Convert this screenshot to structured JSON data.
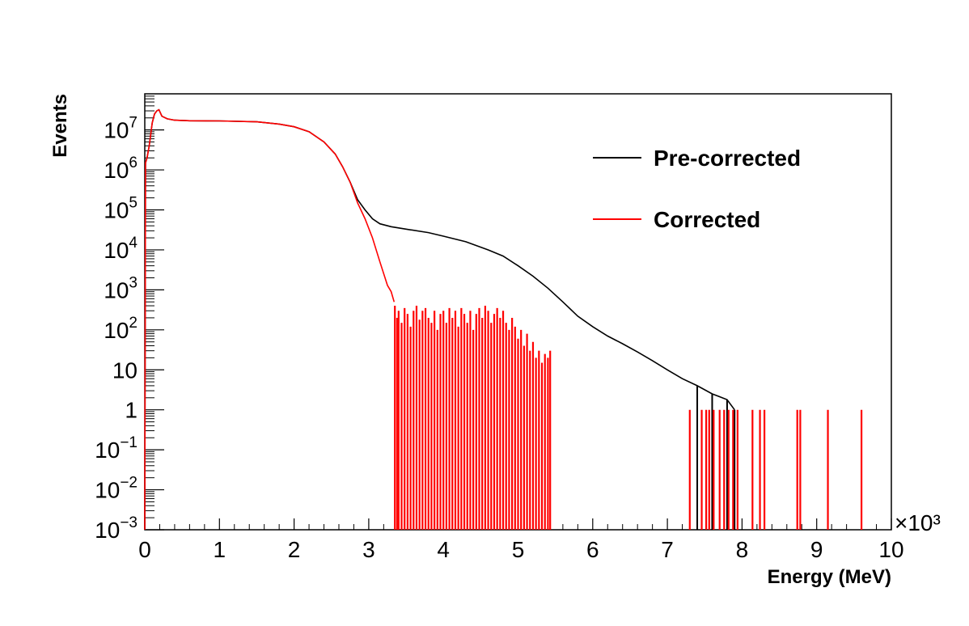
{
  "chart_data": {
    "type": "line",
    "title": "",
    "xlabel": "Energy (MeV)",
    "ylabel": "Events",
    "x_multiplier_label": "×10³",
    "x_unit_scale": 1000,
    "xlim": [
      0,
      10000
    ],
    "ylim": [
      0.001,
      80000000
    ],
    "y_scale": "log",
    "grid": false,
    "legend_position": "top-right",
    "x_ticks": [
      {
        "value": 0,
        "label": "0"
      },
      {
        "value": 1000,
        "label": "1"
      },
      {
        "value": 2000,
        "label": "2"
      },
      {
        "value": 3000,
        "label": "3"
      },
      {
        "value": 4000,
        "label": "4"
      },
      {
        "value": 5000,
        "label": "5"
      },
      {
        "value": 6000,
        "label": "6"
      },
      {
        "value": 7000,
        "label": "7"
      },
      {
        "value": 8000,
        "label": "8"
      },
      {
        "value": 9000,
        "label": "9"
      },
      {
        "value": 10000,
        "label": "10"
      }
    ],
    "y_ticks": [
      {
        "value": 0.001,
        "base": "10",
        "exp": "−3"
      },
      {
        "value": 0.01,
        "base": "10",
        "exp": "−2"
      },
      {
        "value": 0.1,
        "base": "10",
        "exp": "−1"
      },
      {
        "value": 1,
        "base": "1",
        "exp": ""
      },
      {
        "value": 10,
        "base": "10",
        "exp": ""
      },
      {
        "value": 100,
        "base": "10",
        "exp": "2"
      },
      {
        "value": 1000,
        "base": "10",
        "exp": "3"
      },
      {
        "value": 10000,
        "base": "10",
        "exp": "4"
      },
      {
        "value": 100000,
        "base": "10",
        "exp": "5"
      },
      {
        "value": 1000000,
        "base": "10",
        "exp": "6"
      },
      {
        "value": 10000000,
        "base": "10",
        "exp": "7"
      }
    ],
    "series": [
      {
        "name": "Pre-corrected",
        "color": "#000000",
        "points": [
          [
            0,
            0.001
          ],
          [
            10,
            1500000
          ],
          [
            30,
            2000000
          ],
          [
            60,
            4000000
          ],
          [
            100,
            15000000
          ],
          [
            130,
            25000000
          ],
          [
            160,
            30000000
          ],
          [
            190,
            32000000
          ],
          [
            230,
            22000000
          ],
          [
            300,
            19000000
          ],
          [
            400,
            17500000
          ],
          [
            600,
            17000000
          ],
          [
            1000,
            16800000
          ],
          [
            1500,
            16000000
          ],
          [
            1800,
            14000000
          ],
          [
            2000,
            12000000
          ],
          [
            2200,
            9000000
          ],
          [
            2400,
            5000000
          ],
          [
            2550,
            2500000
          ],
          [
            2650,
            1200000
          ],
          [
            2750,
            500000
          ],
          [
            2850,
            180000
          ],
          [
            2950,
            100000
          ],
          [
            3050,
            60000
          ],
          [
            3150,
            45000
          ],
          [
            3300,
            38000
          ],
          [
            3500,
            33000
          ],
          [
            3800,
            27000
          ],
          [
            4000,
            22000
          ],
          [
            4300,
            16000
          ],
          [
            4600,
            10000
          ],
          [
            4800,
            7000
          ],
          [
            5000,
            4000
          ],
          [
            5200,
            2200
          ],
          [
            5400,
            1100
          ],
          [
            5600,
            500
          ],
          [
            5800,
            220
          ],
          [
            6000,
            120
          ],
          [
            6200,
            70
          ],
          [
            6400,
            45
          ],
          [
            6600,
            28
          ],
          [
            6800,
            17
          ],
          [
            7000,
            10
          ],
          [
            7200,
            6
          ],
          [
            7400,
            4
          ],
          [
            7600,
            2.5
          ],
          [
            7800,
            1.8
          ],
          [
            7900,
            1
          ]
        ]
      },
      {
        "name": "Corrected",
        "color": "#ff0000",
        "points": [
          [
            0,
            0.001
          ],
          [
            10,
            1500000
          ],
          [
            30,
            2000000
          ],
          [
            60,
            4000000
          ],
          [
            100,
            15000000
          ],
          [
            130,
            25000000
          ],
          [
            160,
            30000000
          ],
          [
            190,
            32000000
          ],
          [
            230,
            22000000
          ],
          [
            300,
            19000000
          ],
          [
            400,
            17500000
          ],
          [
            600,
            17000000
          ],
          [
            1000,
            16800000
          ],
          [
            1500,
            16000000
          ],
          [
            1800,
            14000000
          ],
          [
            2000,
            12000000
          ],
          [
            2200,
            9000000
          ],
          [
            2400,
            5000000
          ],
          [
            2550,
            2500000
          ],
          [
            2650,
            1200000
          ],
          [
            2750,
            500000
          ],
          [
            2850,
            150000
          ],
          [
            2950,
            60000
          ],
          [
            3050,
            20000
          ],
          [
            3150,
            5000
          ],
          [
            3250,
            1300
          ],
          [
            3300,
            900
          ],
          [
            3340,
            500
          ]
        ],
        "spikes": [
          [
            3350,
            400
          ],
          [
            3380,
            200
          ],
          [
            3400,
            300
          ],
          [
            3440,
            150
          ],
          [
            3480,
            350
          ],
          [
            3520,
            250
          ],
          [
            3560,
            120
          ],
          [
            3600,
            300
          ],
          [
            3640,
            400
          ],
          [
            3680,
            180
          ],
          [
            3720,
            300
          ],
          [
            3760,
            350
          ],
          [
            3800,
            200
          ],
          [
            3840,
            150
          ],
          [
            3880,
            300
          ],
          [
            3920,
            100
          ],
          [
            3960,
            250
          ],
          [
            4000,
            300
          ],
          [
            4040,
            150
          ],
          [
            4080,
            350
          ],
          [
            4120,
            200
          ],
          [
            4160,
            300
          ],
          [
            4200,
            120
          ],
          [
            4240,
            350
          ],
          [
            4280,
            250
          ],
          [
            4320,
            150
          ],
          [
            4360,
            300
          ],
          [
            4400,
            100
          ],
          [
            4440,
            250
          ],
          [
            4480,
            350
          ],
          [
            4520,
            200
          ],
          [
            4560,
            400
          ],
          [
            4600,
            300
          ],
          [
            4640,
            150
          ],
          [
            4680,
            250
          ],
          [
            4720,
            350
          ],
          [
            4760,
            200
          ],
          [
            4800,
            300
          ],
          [
            4840,
            150
          ],
          [
            4880,
            100
          ],
          [
            4920,
            200
          ],
          [
            4960,
            120
          ],
          [
            5000,
            60
          ],
          [
            5040,
            100
          ],
          [
            5080,
            40
          ],
          [
            5120,
            80
          ],
          [
            5160,
            30
          ],
          [
            5200,
            50
          ],
          [
            5240,
            20
          ],
          [
            5280,
            30
          ],
          [
            5320,
            15
          ],
          [
            5360,
            25
          ],
          [
            5400,
            20
          ],
          [
            5430,
            30
          ],
          [
            7300,
            1
          ],
          [
            7460,
            1
          ],
          [
            7520,
            1
          ],
          [
            7560,
            1
          ],
          [
            7620,
            1
          ],
          [
            7700,
            1
          ],
          [
            7760,
            1
          ],
          [
            7820,
            1
          ],
          [
            7880,
            1
          ],
          [
            7940,
            1
          ],
          [
            8140,
            1
          ],
          [
            8240,
            1
          ],
          [
            8300,
            1
          ],
          [
            8740,
            1
          ],
          [
            8780,
            1
          ],
          [
            9150,
            1
          ],
          [
            9600,
            1
          ]
        ]
      }
    ]
  }
}
